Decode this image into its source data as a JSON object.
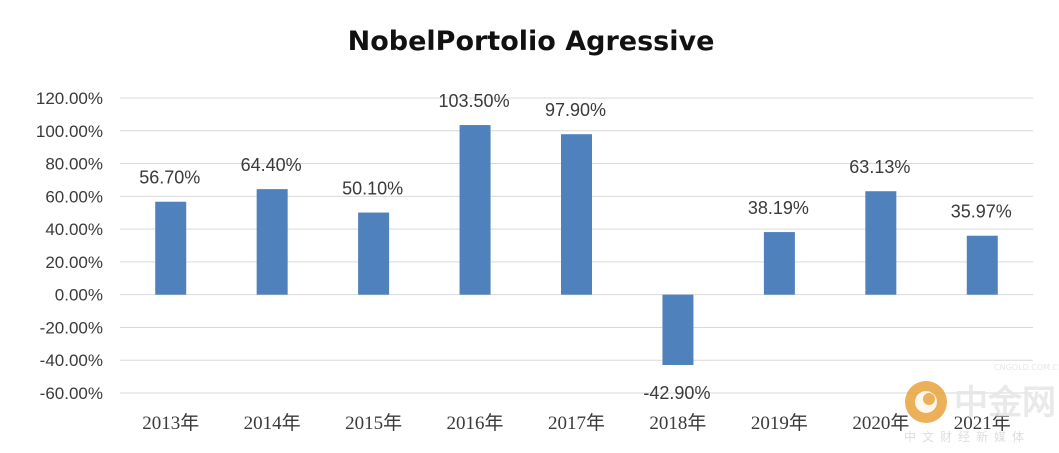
{
  "chart_data": {
    "type": "bar",
    "title": "NobelPortolio Agressive",
    "categories": [
      "2013年",
      "2014年",
      "2015年",
      "2016年",
      "2017年",
      "2018年",
      "2019年",
      "2020年",
      "2021年"
    ],
    "values": [
      56.7,
      64.4,
      50.1,
      103.5,
      97.9,
      -42.9,
      38.19,
      63.13,
      35.97
    ],
    "data_labels": [
      "56.70%",
      "64.40%",
      "50.10%",
      "103.50%",
      "97.90%",
      "-42.90%",
      "38.19%",
      "63.13%",
      "35.97%"
    ],
    "ylim": [
      -60,
      120
    ],
    "ytick_values": [
      120,
      100,
      80,
      60,
      40,
      20,
      0,
      -20,
      -40,
      -60
    ],
    "ytick_labels": [
      "120.00%",
      "100.00%",
      "80.00%",
      "60.00%",
      "40.00%",
      "20.00%",
      "0.00%",
      "-20.00%",
      "-40.00%",
      "-60.00%"
    ],
    "xlabel": "",
    "ylabel": "",
    "grid": true,
    "bar_color": "#4f81bd"
  },
  "watermark": {
    "brand": "中金网",
    "subtitle": "中文财经新媒体",
    "url": "CNGOLD.COM.CN",
    "logo_color": "#e8a33c"
  }
}
